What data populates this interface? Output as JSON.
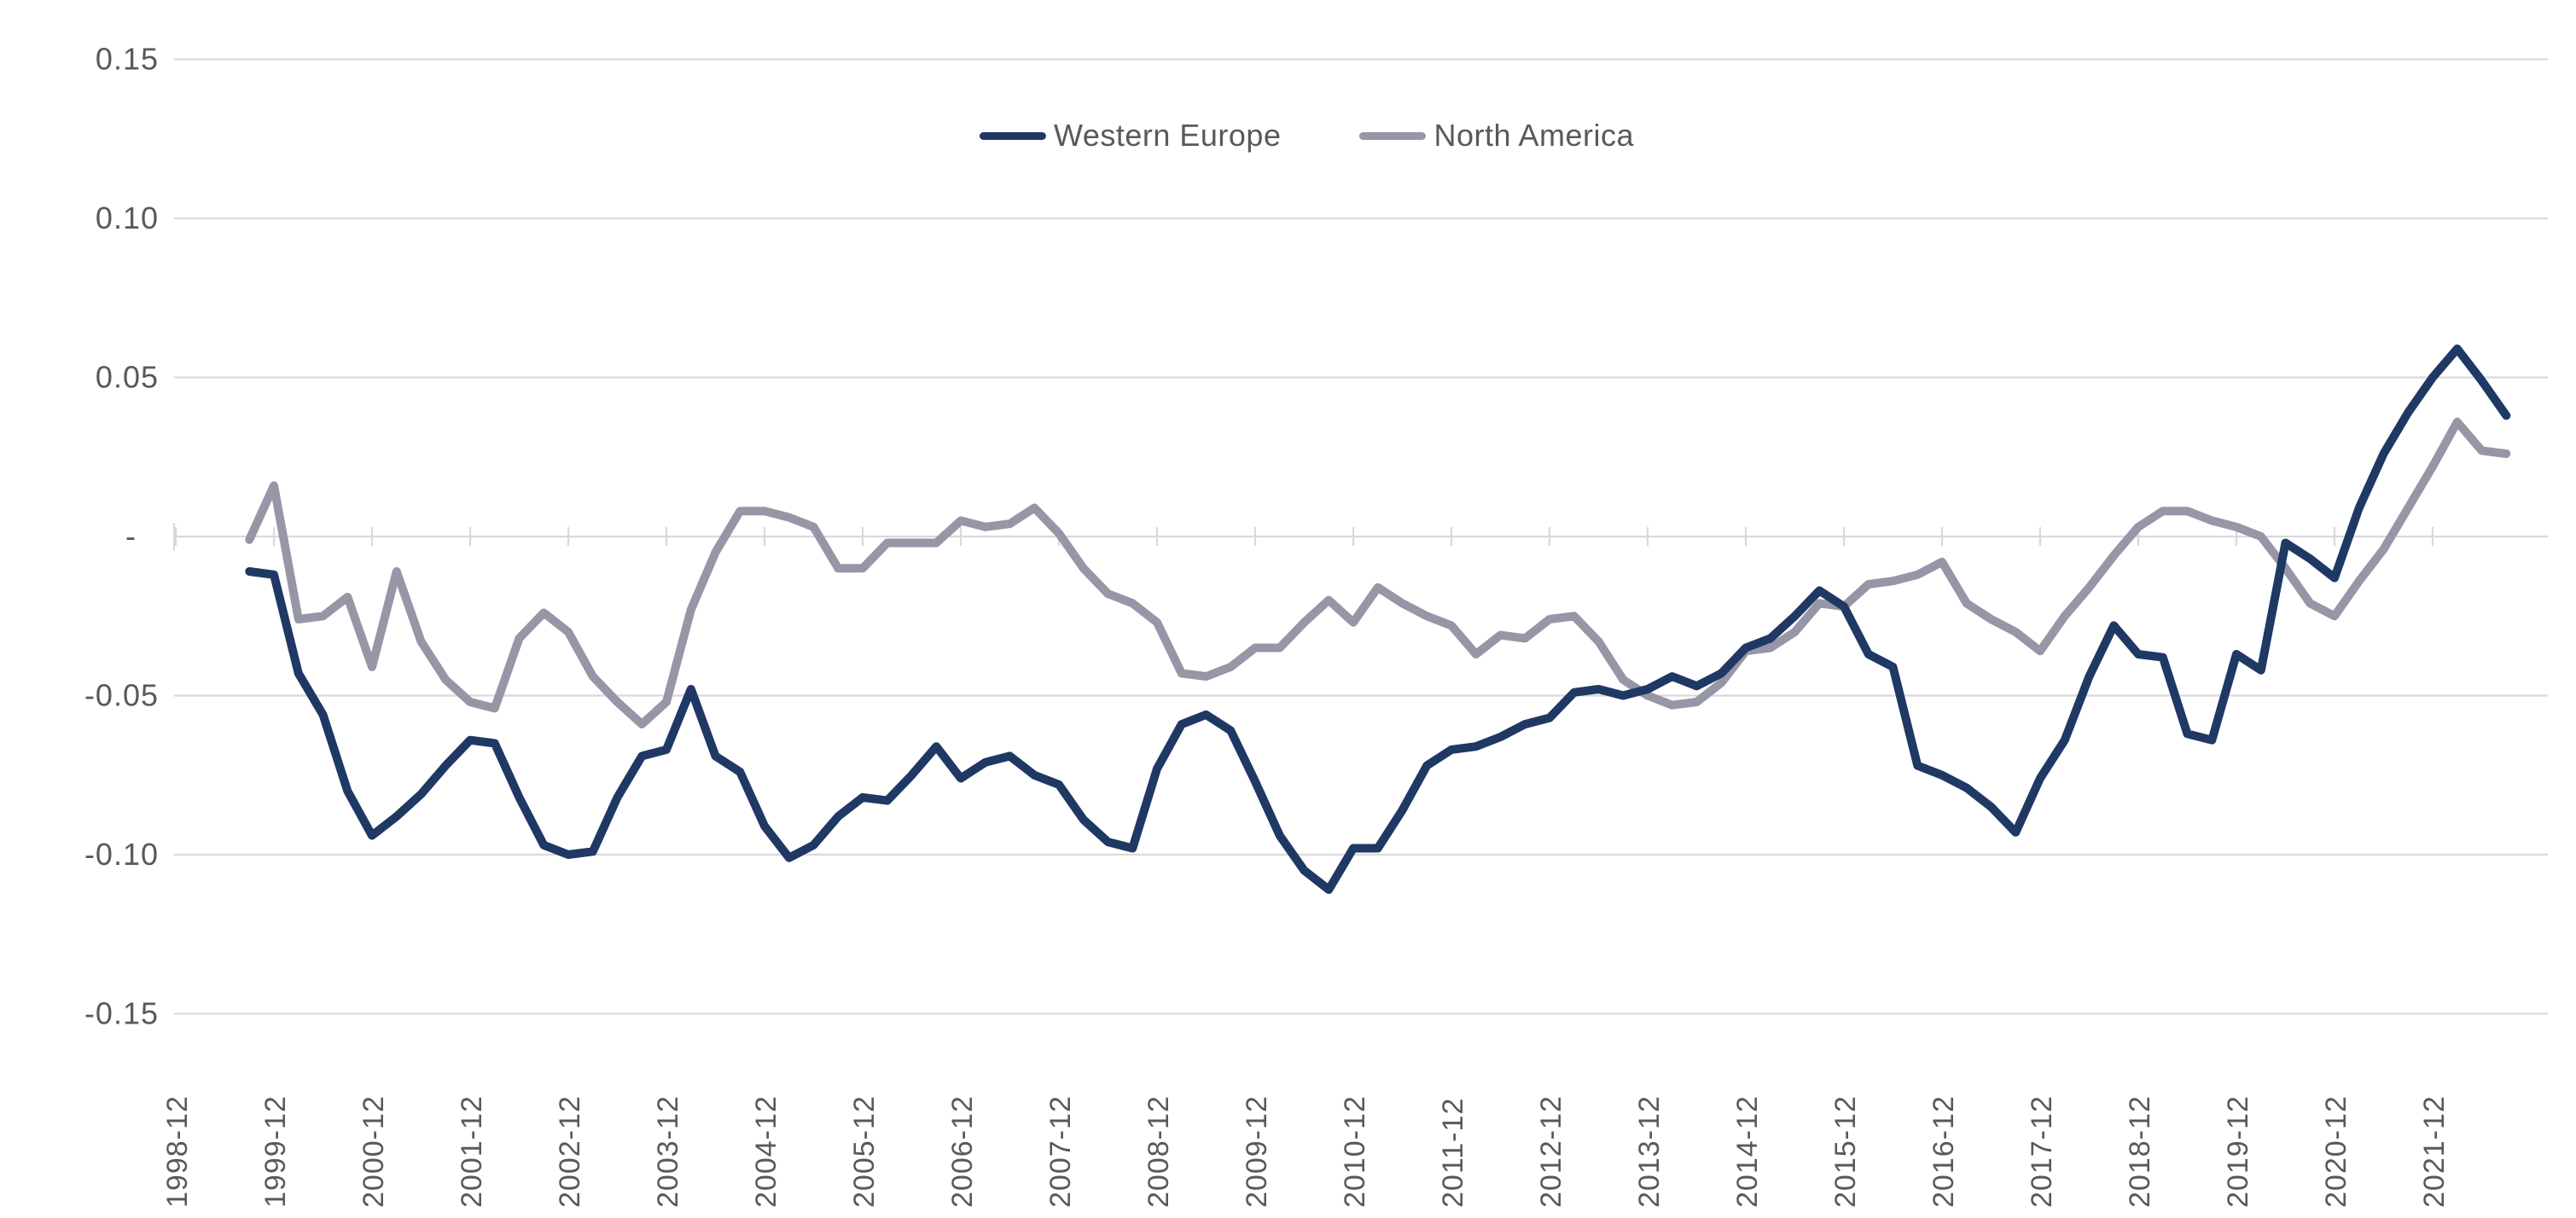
{
  "chart_data": {
    "type": "line",
    "title": "",
    "xlabel": "",
    "ylabel": "",
    "ylim": [
      -0.15,
      0.15
    ],
    "grid": true,
    "legend_position": "top-center",
    "y_ticks": [
      {
        "value": 0.15,
        "label": "0.15"
      },
      {
        "value": 0.1,
        "label": "0.10"
      },
      {
        "value": 0.05,
        "label": "0.05"
      },
      {
        "value": 0.0,
        "label": "-"
      },
      {
        "value": -0.05,
        "label": "-0.05"
      },
      {
        "value": -0.1,
        "label": "-0.10"
      },
      {
        "value": -0.15,
        "label": "-0.15"
      }
    ],
    "x_tick_labels": [
      "1998-12",
      "1999-12",
      "2000-12",
      "2001-12",
      "2002-12",
      "2003-12",
      "2004-12",
      "2005-12",
      "2006-12",
      "2007-12",
      "2008-12",
      "2009-12",
      "2010-12",
      "2011-12",
      "2012-12",
      "2013-12",
      "2014-12",
      "2015-12",
      "2016-12",
      "2017-12",
      "2018-12",
      "2019-12",
      "2020-12",
      "2021-12"
    ],
    "x": [
      "1999-09",
      "1999-12",
      "2000-03",
      "2000-06",
      "2000-09",
      "2000-12",
      "2001-03",
      "2001-06",
      "2001-09",
      "2001-12",
      "2002-03",
      "2002-06",
      "2002-09",
      "2002-12",
      "2003-03",
      "2003-06",
      "2003-09",
      "2003-12",
      "2004-03",
      "2004-06",
      "2004-09",
      "2004-12",
      "2005-03",
      "2005-06",
      "2005-09",
      "2005-12",
      "2006-03",
      "2006-06",
      "2006-09",
      "2006-12",
      "2007-03",
      "2007-06",
      "2007-09",
      "2007-12",
      "2008-03",
      "2008-06",
      "2008-09",
      "2008-12",
      "2009-03",
      "2009-06",
      "2009-09",
      "2009-12",
      "2010-03",
      "2010-06",
      "2010-09",
      "2010-12",
      "2011-03",
      "2011-06",
      "2011-09",
      "2011-12",
      "2012-03",
      "2012-06",
      "2012-09",
      "2012-12",
      "2013-03",
      "2013-06",
      "2013-09",
      "2013-12",
      "2014-03",
      "2014-06",
      "2014-09",
      "2014-12",
      "2015-03",
      "2015-06",
      "2015-09",
      "2015-12",
      "2016-03",
      "2016-06",
      "2016-09",
      "2016-12",
      "2017-03",
      "2017-06",
      "2017-09",
      "2017-12",
      "2018-03",
      "2018-06",
      "2018-09",
      "2018-12",
      "2019-03",
      "2019-06",
      "2019-09",
      "2019-12",
      "2020-03",
      "2020-06",
      "2020-09",
      "2020-12",
      "2021-03",
      "2021-06",
      "2021-09",
      "2021-12",
      "2022-03",
      "2022-06",
      "2022-09"
    ],
    "series": [
      {
        "name": "North America",
        "color": "#9696A6",
        "values": [
          -0.001,
          0.016,
          -0.026,
          -0.025,
          -0.019,
          -0.041,
          -0.011,
          -0.033,
          -0.045,
          -0.052,
          -0.054,
          -0.032,
          -0.024,
          -0.03,
          -0.044,
          -0.052,
          -0.059,
          -0.052,
          -0.023,
          -0.005,
          0.008,
          0.008,
          0.006,
          0.003,
          -0.01,
          -0.01,
          -0.002,
          -0.002,
          -0.002,
          0.005,
          0.003,
          0.004,
          0.009,
          0.001,
          -0.01,
          -0.018,
          -0.021,
          -0.027,
          -0.043,
          -0.044,
          -0.041,
          -0.035,
          -0.035,
          -0.027,
          -0.02,
          -0.027,
          -0.016,
          -0.021,
          -0.025,
          -0.028,
          -0.037,
          -0.031,
          -0.032,
          -0.026,
          -0.025,
          -0.033,
          -0.045,
          -0.05,
          -0.053,
          -0.052,
          -0.046,
          -0.036,
          -0.035,
          -0.03,
          -0.021,
          -0.022,
          -0.015,
          -0.014,
          -0.012,
          -0.008,
          -0.021,
          -0.026,
          -0.03,
          -0.036,
          -0.025,
          -0.016,
          -0.006,
          0.003,
          0.008,
          0.008,
          0.005,
          0.003,
          0.0,
          -0.01,
          -0.021,
          -0.025,
          -0.014,
          -0.004,
          0.009,
          0.022,
          0.036,
          0.027,
          0.026
        ]
      },
      {
        "name": "Western Europe",
        "color": "#1F3864",
        "values": [
          -0.011,
          -0.012,
          -0.043,
          -0.056,
          -0.08,
          -0.094,
          -0.088,
          -0.081,
          -0.072,
          -0.064,
          -0.065,
          -0.082,
          -0.097,
          -0.1,
          -0.099,
          -0.082,
          -0.069,
          -0.067,
          -0.048,
          -0.069,
          -0.074,
          -0.091,
          -0.101,
          -0.097,
          -0.088,
          -0.082,
          -0.083,
          -0.075,
          -0.066,
          -0.076,
          -0.071,
          -0.069,
          -0.075,
          -0.078,
          -0.089,
          -0.096,
          -0.098,
          -0.073,
          -0.059,
          -0.056,
          -0.061,
          -0.077,
          -0.094,
          -0.105,
          -0.111,
          -0.098,
          -0.098,
          -0.086,
          -0.072,
          -0.067,
          -0.066,
          -0.063,
          -0.059,
          -0.057,
          -0.049,
          -0.048,
          -0.05,
          -0.048,
          -0.044,
          -0.047,
          -0.043,
          -0.035,
          -0.032,
          -0.025,
          -0.017,
          -0.022,
          -0.037,
          -0.041,
          -0.072,
          -0.075,
          -0.079,
          -0.085,
          -0.093,
          -0.076,
          -0.064,
          -0.044,
          -0.028,
          -0.037,
          -0.038,
          -0.062,
          -0.064,
          -0.037,
          -0.042,
          -0.002,
          -0.007,
          -0.013,
          0.009,
          0.026,
          0.039,
          0.05,
          0.059,
          0.049,
          0.038
        ]
      }
    ]
  },
  "legend": {
    "items": [
      {
        "label": "Western Europe"
      },
      {
        "label": "North America"
      }
    ]
  },
  "colors": {
    "background": "#FFFFFF",
    "gridline": "#D9D9D9",
    "axis_text": "#595959",
    "western_europe": "#1F3864",
    "north_america": "#9696A6"
  }
}
